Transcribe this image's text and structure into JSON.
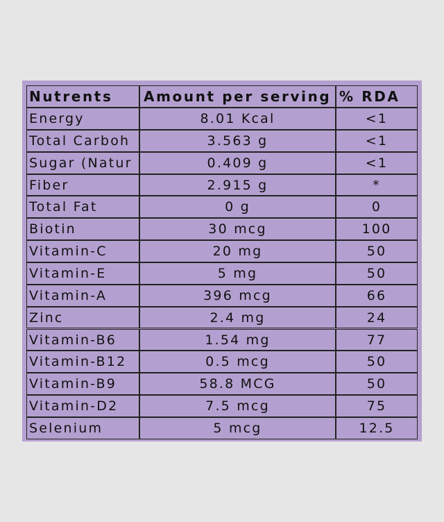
{
  "table": {
    "header": [
      "Nutrents",
      "Amount per serving",
      "% RDA"
    ],
    "rows": [
      [
        "Energy",
        "8.01 Kcal",
        "<1"
      ],
      [
        "Total Carboh",
        "3.563 g",
        "<1"
      ],
      [
        "Sugar (Natur",
        "0.409 g",
        "<1"
      ],
      [
        "Fiber",
        "2.915 g",
        "*"
      ],
      [
        "Total Fat",
        "0 g",
        "0"
      ],
      [
        "Biotin",
        "30 mcg",
        "100"
      ],
      [
        "Vitamin-C",
        "20 mg",
        "50"
      ],
      [
        "Vitamin-E",
        "5 mg",
        "50"
      ],
      [
        "Vitamin-A",
        "396 mcg",
        "66"
      ],
      [
        "Zinc",
        "2.4 mg",
        "24"
      ],
      [
        "Vitamin-B6",
        "1.54 mg",
        "77"
      ],
      [
        "Vitamin-B12",
        "0.5 mcg",
        "50"
      ],
      [
        "Vitamin-B9",
        "58.8 MCG",
        "50"
      ],
      [
        "Vitamin-D2",
        "7.5 mcg",
        "75"
      ],
      [
        "Selenium",
        "5 mcg",
        "12.5"
      ]
    ]
  }
}
